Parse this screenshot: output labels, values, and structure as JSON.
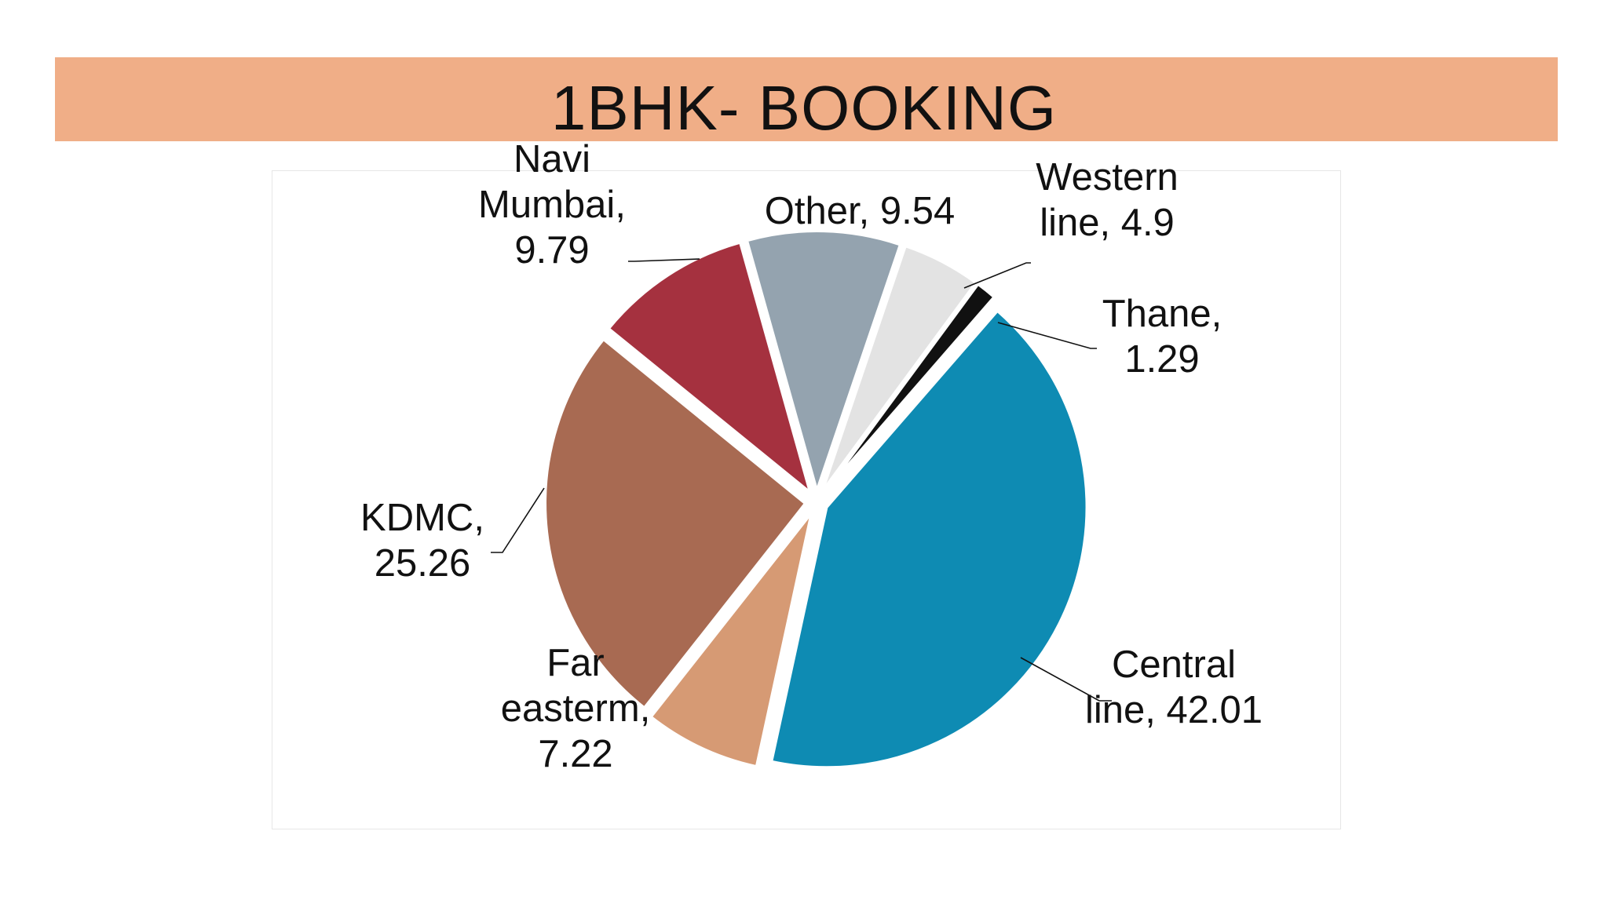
{
  "title": "1BHK- BOOKING",
  "chart_data": {
    "type": "pie",
    "title": "1BHK- BOOKING",
    "exploded": true,
    "labels_position": "outside-with-leader-lines",
    "slices": [
      {
        "name": "Central line",
        "value": 42.01,
        "color": "#0e8bb3",
        "label_lines": [
          "Central",
          "line, 42.01"
        ]
      },
      {
        "name": "Far easterm",
        "value": 7.22,
        "color": "#d69a74",
        "label_lines": [
          "Far",
          "easterm,",
          "7.22"
        ]
      },
      {
        "name": "KDMC",
        "value": 25.26,
        "color": "#a86a52",
        "label_lines": [
          "KDMC,",
          "25.26"
        ]
      },
      {
        "name": "Navi Mumbai",
        "value": 9.79,
        "color": "#a5313f",
        "label_lines": [
          "Navi",
          "Mumbai,",
          "9.79"
        ]
      },
      {
        "name": "Other",
        "value": 9.54,
        "color": "#94a3af",
        "label_lines": [
          "Other, 9.54"
        ]
      },
      {
        "name": "Western line",
        "value": 4.9,
        "color": "#e3e3e3",
        "label_lines": [
          "Western",
          "line, 4.9"
        ]
      },
      {
        "name": "Thane",
        "value": 1.29,
        "color": "#111111",
        "label_lines": [
          "Thane,",
          "1.29"
        ]
      }
    ]
  }
}
